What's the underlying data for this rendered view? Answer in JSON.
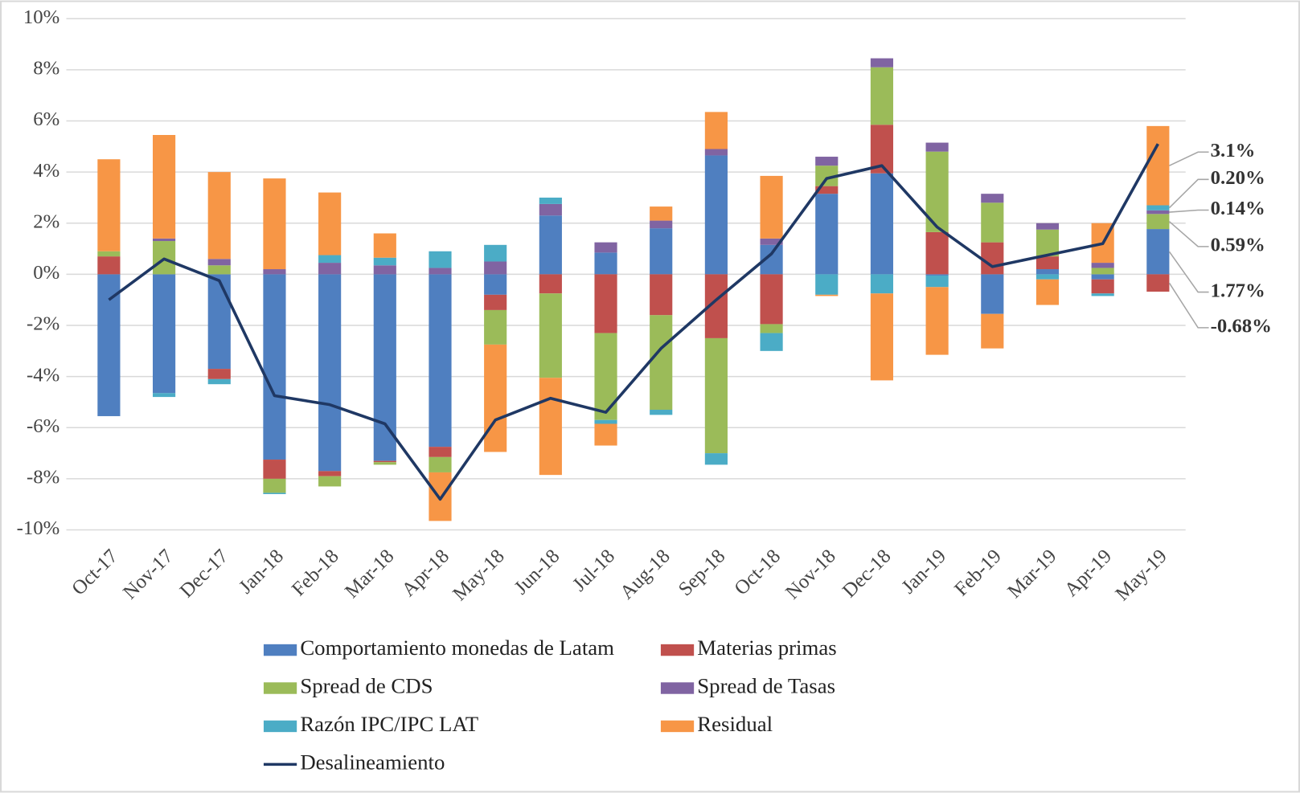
{
  "chart_data": {
    "type": "bar",
    "stacked": true,
    "categories": [
      "Oct-17",
      "Nov-17",
      "Dec-17",
      "Jan-18",
      "Feb-18",
      "Mar-18",
      "Apr-18",
      "May-18",
      "Jun-18",
      "Jul-18",
      "Aug-18",
      "Sep-18",
      "Oct-18",
      "Nov-18",
      "Dec-18",
      "Jan-19",
      "Feb-19",
      "Mar-19",
      "Apr-19",
      "May-19"
    ],
    "ylim": [
      -10,
      10
    ],
    "yticks": [
      {
        "value": -10,
        "label": "-10%"
      },
      {
        "value": -8,
        "label": "-8%"
      },
      {
        "value": -6,
        "label": "-6%"
      },
      {
        "value": -4,
        "label": "-4%"
      },
      {
        "value": -2,
        "label": "-2%"
      },
      {
        "value": 0,
        "label": "0%"
      },
      {
        "value": 2,
        "label": "2%"
      },
      {
        "value": 4,
        "label": "4%"
      },
      {
        "value": 6,
        "label": "6%"
      },
      {
        "value": 8,
        "label": "8%"
      },
      {
        "value": 10,
        "label": "10%"
      }
    ],
    "grid": true,
    "series": [
      {
        "name": "Comportamiento monedas de Latam",
        "color": "#4f7fc0",
        "label_color": "#8fb0dc",
        "values": [
          -5.55,
          -4.65,
          -3.7,
          -7.25,
          -7.7,
          -7.3,
          -6.75,
          -0.8,
          2.3,
          0.85,
          1.8,
          4.65,
          1.15,
          3.15,
          3.95,
          -0.05,
          -1.55,
          0.2,
          -0.2,
          1.77
        ],
        "value_labels": [
          null,
          null,
          null,
          null,
          null,
          null,
          null,
          null,
          null,
          null,
          null,
          null,
          null,
          null,
          null,
          null,
          null,
          null,
          null,
          "1.77%"
        ]
      },
      {
        "name": "Materias primas",
        "color": "#c0504d",
        "label_color": "#f28a3c",
        "values": [
          0.7,
          0,
          -0.4,
          -0.75,
          -0.2,
          -0.05,
          -0.4,
          -0.6,
          -0.75,
          -2.3,
          -1.6,
          -2.5,
          -1.95,
          0.3,
          1.9,
          1.65,
          1.25,
          0.5,
          -0.55,
          -0.68
        ],
        "value_labels": [
          null,
          null,
          null,
          null,
          null,
          null,
          null,
          null,
          null,
          null,
          null,
          null,
          null,
          null,
          null,
          null,
          null,
          null,
          null,
          "-0.68%"
        ]
      },
      {
        "name": "Spread de CDS",
        "color": "#9bbb59",
        "label_color": "#a6a6a6",
        "values": [
          0.2,
          1.3,
          0.35,
          -0.55,
          -0.4,
          -0.1,
          -0.6,
          -1.35,
          -3.3,
          -3.4,
          -3.7,
          -4.5,
          -0.35,
          0.8,
          2.25,
          3.15,
          1.55,
          1.05,
          0.25,
          0.59
        ],
        "value_labels": [
          null,
          null,
          null,
          null,
          null,
          null,
          null,
          null,
          null,
          null,
          null,
          null,
          null,
          null,
          null,
          null,
          null,
          null,
          null,
          "0.59%"
        ]
      },
      {
        "name": "Spread de Tasas",
        "color": "#8064a2",
        "label_color": "#f5b800",
        "values": [
          0,
          0.1,
          0.25,
          0.2,
          0.45,
          0.35,
          0.25,
          0.5,
          0.45,
          0.4,
          0.3,
          0.25,
          0.25,
          0.35,
          0.35,
          0.35,
          0.35,
          0.25,
          0.2,
          0.14
        ],
        "value_labels": [
          null,
          null,
          null,
          null,
          null,
          null,
          null,
          null,
          null,
          null,
          null,
          null,
          null,
          null,
          null,
          null,
          null,
          null,
          null,
          "0.14%"
        ]
      },
      {
        "name": "Razón  IPC/IPC LAT",
        "color": "#4bacc6",
        "label_color": "#1f3864",
        "values": [
          0,
          -0.15,
          -0.2,
          -0.05,
          0.3,
          0.3,
          0.65,
          0.65,
          0.25,
          -0.15,
          -0.2,
          -0.45,
          -0.7,
          -0.8,
          -0.75,
          -0.45,
          0,
          -0.2,
          -0.1,
          0.2
        ],
        "value_labels": [
          null,
          null,
          null,
          null,
          null,
          null,
          null,
          null,
          null,
          null,
          null,
          null,
          null,
          null,
          null,
          null,
          null,
          null,
          null,
          "0.20%"
        ]
      },
      {
        "name": "Residual",
        "color": "#f79646",
        "label_color": "#f28a3c",
        "values": [
          3.6,
          4.05,
          3.4,
          3.55,
          2.45,
          0.95,
          -1.9,
          -4.2,
          -3.8,
          -0.85,
          0.55,
          1.45,
          2.45,
          -0.05,
          -3.4,
          -2.65,
          -1.35,
          -1.0,
          1.55,
          3.1
        ],
        "value_labels": [
          null,
          null,
          null,
          null,
          null,
          null,
          null,
          null,
          null,
          null,
          null,
          null,
          null,
          null,
          null,
          null,
          null,
          null,
          null,
          "3.1%"
        ]
      },
      {
        "name": "Desalineamiento",
        "type": "line",
        "color": "#1f3864",
        "values": [
          -1.0,
          0.6,
          -0.25,
          -4.75,
          -5.1,
          -5.85,
          -8.8,
          -5.7,
          -4.85,
          -5.4,
          -2.9,
          -1.0,
          0.8,
          3.75,
          4.25,
          1.85,
          0.3,
          0.75,
          1.2,
          5.1
        ]
      }
    ]
  }
}
